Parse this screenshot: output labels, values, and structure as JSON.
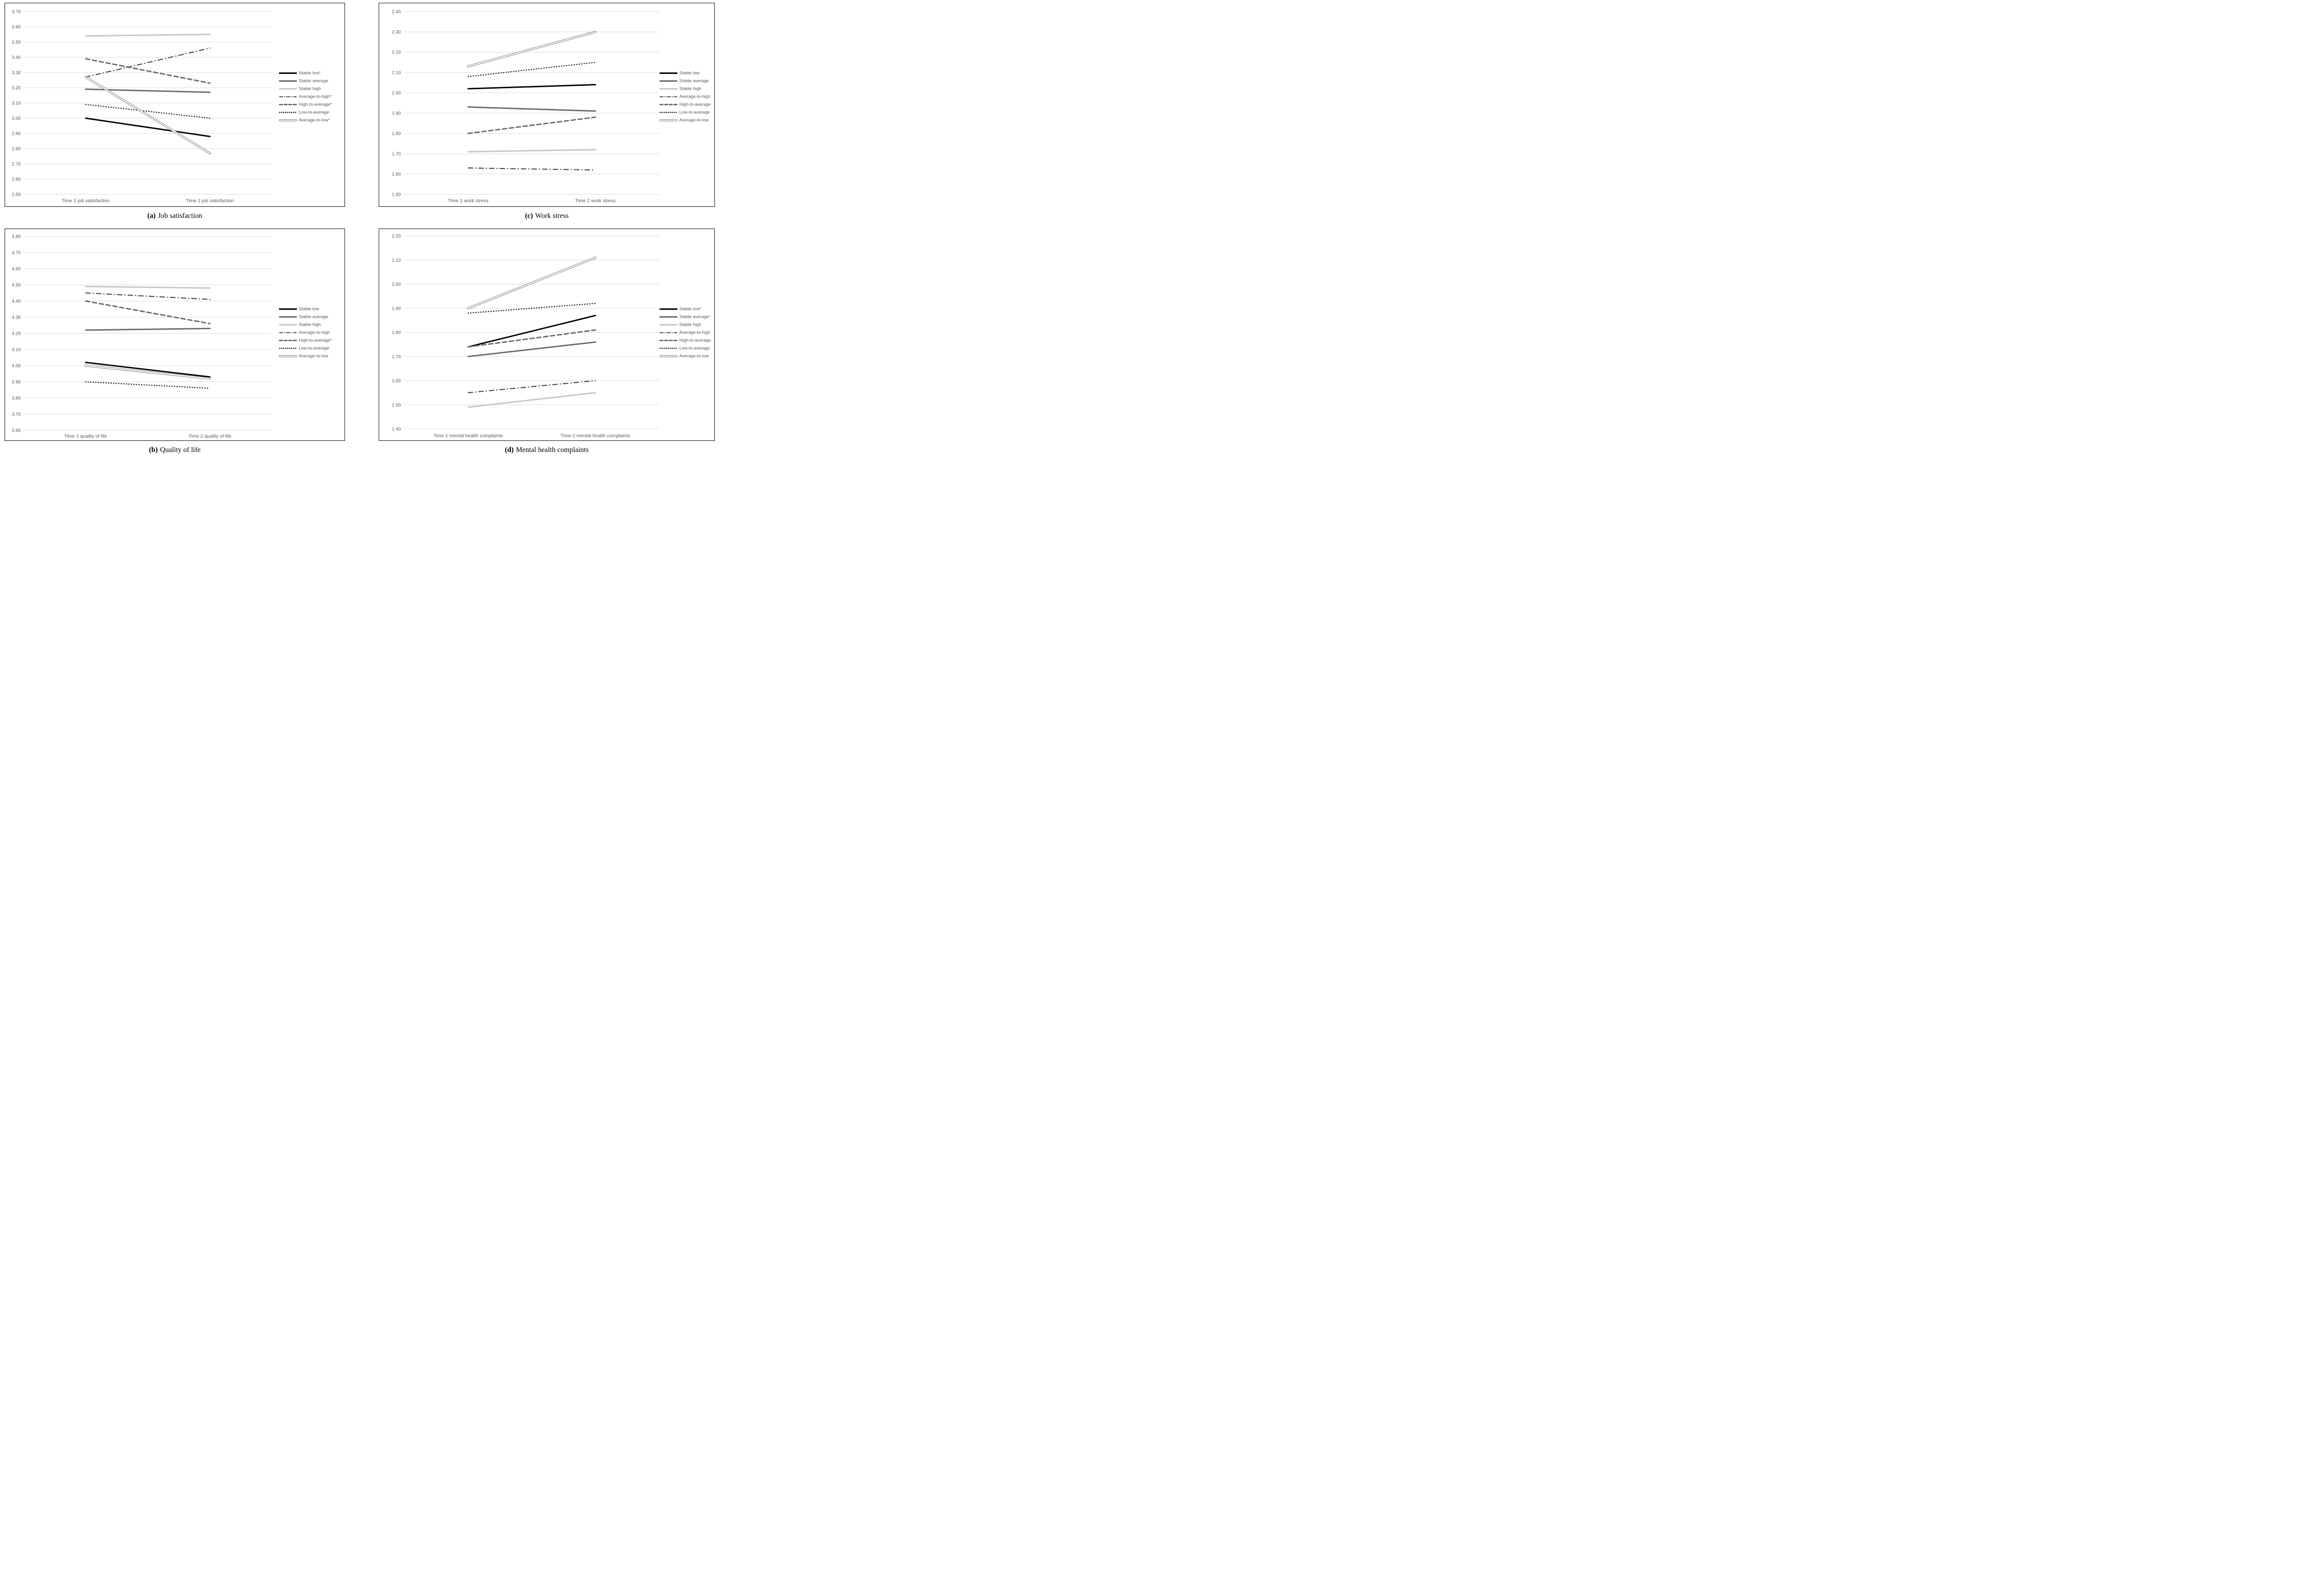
{
  "figure": {
    "background": "#ffffff",
    "panel_border_color": "#000000",
    "grid_color": "#d9d9d9",
    "tick_text_color": "#595959",
    "legend_text_color": "#595959",
    "caption_text_color": "#000000"
  },
  "series_styles": {
    "stable-low": {
      "color": "#000000",
      "pattern": "solid",
      "width": 3
    },
    "stable-average": {
      "color": "#6b6b6b",
      "pattern": "solid",
      "width": 3
    },
    "stable-high": {
      "color": "#c6c6c6",
      "pattern": "solid",
      "width": 3
    },
    "average-to-high": {
      "color": "#3f3f3f",
      "pattern": "dash-dot",
      "width": 2.1
    },
    "high-to-average": {
      "color": "#6b6b6b",
      "pattern": "dash",
      "width": 3
    },
    "low-to-average": {
      "color": "#0f0f0f",
      "pattern": "dot",
      "width": 2.4
    },
    "average-to-low": {
      "color": "#8c8c8c",
      "pattern": "double",
      "width": 4.6
    }
  },
  "chart_data": [
    {
      "id": "a",
      "type": "line",
      "title_prefix": "(a)",
      "title": "Job satisfaction",
      "categories": [
        "Time 1 job satisfaction",
        "Time 2 job satisfaction"
      ],
      "ylim": [
        2.5,
        3.7
      ],
      "y_ticks": [
        "3.70",
        "3.60",
        "3.50",
        "3.40",
        "3.30",
        "3.20",
        "3.10",
        "3.00",
        "2.90",
        "2.80",
        "2.70",
        "2.60",
        "2.50"
      ],
      "grid": true,
      "legend_position": "right",
      "series": [
        {
          "key": "stable-low",
          "name": "Stable low*",
          "values": [
            3.0,
            2.88
          ]
        },
        {
          "key": "stable-average",
          "name": "Stable average",
          "values": [
            3.19,
            3.17
          ]
        },
        {
          "key": "stable-high",
          "name": "Stable high",
          "values": [
            3.54,
            3.55
          ]
        },
        {
          "key": "average-to-high",
          "name": "Average-to-high*",
          "values": [
            3.27,
            3.46
          ]
        },
        {
          "key": "high-to-average",
          "name": "High-to-average*",
          "values": [
            3.39,
            3.23
          ]
        },
        {
          "key": "low-to-average",
          "name": "Low-to-average",
          "values": [
            3.09,
            3.0
          ]
        },
        {
          "key": "average-to-low",
          "name": "Average-to-low*",
          "values": [
            3.27,
            2.77
          ]
        }
      ]
    },
    {
      "id": "c",
      "type": "line",
      "title_prefix": "(c)",
      "title": "Work stress",
      "categories": [
        "Time 1 work stress",
        "Time 2 work stress"
      ],
      "ylim": [
        1.5,
        2.4
      ],
      "y_ticks": [
        "2.40",
        "2.30",
        "2.20",
        "2.10",
        "2.00",
        "1.90",
        "1.80",
        "1.70",
        "1.60",
        "1.50"
      ],
      "grid": true,
      "legend_position": "right",
      "series": [
        {
          "key": "stable-low",
          "name": "Stable low",
          "values": [
            2.02,
            2.04
          ]
        },
        {
          "key": "stable-average",
          "name": "Stable average",
          "values": [
            1.93,
            1.91
          ]
        },
        {
          "key": "stable-high",
          "name": "Stable high",
          "values": [
            1.71,
            1.72
          ]
        },
        {
          "key": "average-to-high",
          "name": "Average-to-high",
          "values": [
            1.63,
            1.62
          ]
        },
        {
          "key": "high-to-average",
          "name": "High-to-average",
          "values": [
            1.8,
            1.88
          ]
        },
        {
          "key": "low-to-average",
          "name": "Low-to-average",
          "values": [
            2.08,
            2.15
          ]
        },
        {
          "key": "average-to-low",
          "name": "Average-to-low",
          "values": [
            2.13,
            2.3
          ]
        }
      ]
    },
    {
      "id": "b",
      "type": "line",
      "title_prefix": "(b)",
      "title": "Quality of life",
      "categories": [
        "Time 1 quality of life",
        "Time 2 quality of life"
      ],
      "ylim": [
        3.6,
        4.8
      ],
      "y_ticks": [
        "4.80",
        "4.70",
        "4.60",
        "4.50",
        "4.40",
        "4.30",
        "4.20",
        "4.10",
        "4.00",
        "3.90",
        "3.80",
        "3.70",
        "3.60"
      ],
      "grid": true,
      "legend_position": "right",
      "series": [
        {
          "key": "stable-low",
          "name": "Stable low",
          "values": [
            4.02,
            3.93
          ]
        },
        {
          "key": "stable-average",
          "name": "Stable average",
          "values": [
            4.22,
            4.23
          ]
        },
        {
          "key": "stable-high",
          "name": "Stable high",
          "values": [
            4.49,
            4.48
          ]
        },
        {
          "key": "average-to-high",
          "name": "Average-to-high",
          "values": [
            4.45,
            4.41
          ]
        },
        {
          "key": "high-to-average",
          "name": "High-to-average*",
          "values": [
            4.4,
            4.26
          ]
        },
        {
          "key": "low-to-average",
          "name": "Low-to-average",
          "values": [
            3.9,
            3.86
          ]
        },
        {
          "key": "average-to-low",
          "name": "Average-to-low",
          "values": [
            4.0,
            3.92
          ]
        }
      ]
    },
    {
      "id": "d",
      "type": "line",
      "title_prefix": "(d)",
      "title": "Mental health complaints",
      "categories": [
        "Time 1 mental health complaints",
        "Time 2 mental health complaints"
      ],
      "ylim": [
        1.4,
        2.2
      ],
      "y_ticks": [
        "2.20",
        "2.10",
        "2.00",
        "1.90",
        "1.80",
        "1.70",
        "1.60",
        "1.50",
        "1.40"
      ],
      "grid": true,
      "legend_position": "right",
      "series": [
        {
          "key": "stable-low",
          "name": "Stable low*",
          "values": [
            1.74,
            1.87
          ]
        },
        {
          "key": "stable-average",
          "name": "Stable average*",
          "values": [
            1.7,
            1.76
          ]
        },
        {
          "key": "stable-high",
          "name": "Stable high",
          "values": [
            1.49,
            1.55
          ]
        },
        {
          "key": "average-to-high",
          "name": "Average-to-high",
          "values": [
            1.55,
            1.6
          ]
        },
        {
          "key": "high-to-average",
          "name": "High-to-average",
          "values": [
            1.74,
            1.81
          ]
        },
        {
          "key": "low-to-average",
          "name": "Low-to-average",
          "values": [
            1.88,
            1.92
          ]
        },
        {
          "key": "average-to-low",
          "name": "Average-to-low",
          "values": [
            1.9,
            2.11
          ]
        }
      ]
    }
  ]
}
